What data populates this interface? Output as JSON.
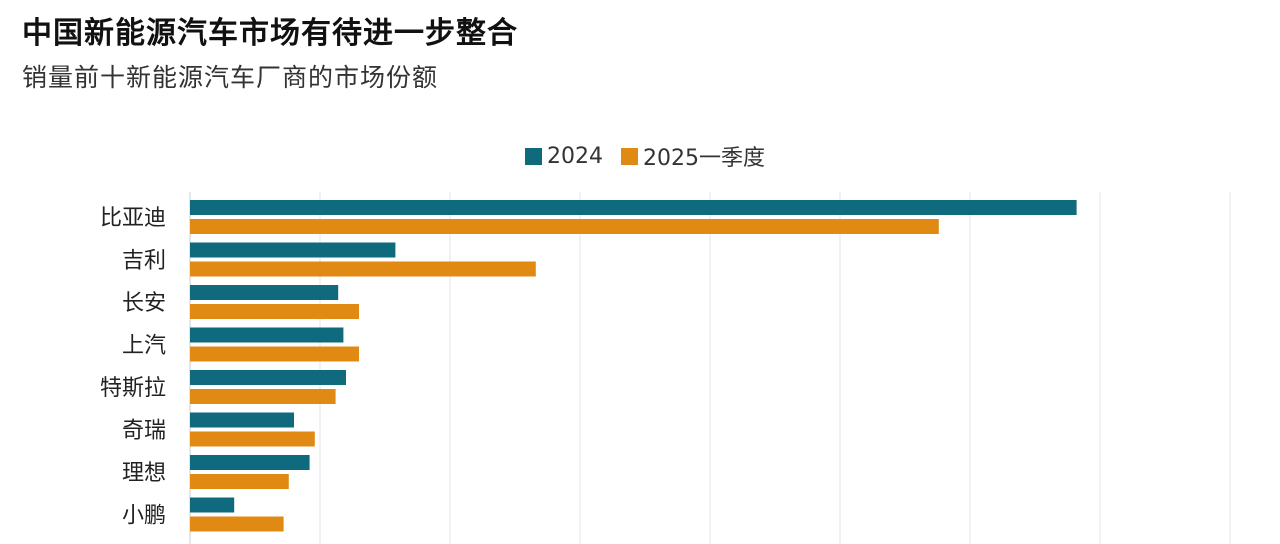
{
  "header": {
    "title": "中国新能源汽车市场有待进一步整合",
    "subtitle": "销量前十新能源汽车厂商的市场份额"
  },
  "legend": {
    "items": [
      {
        "label": "2024",
        "color": "#0f6a7d"
      },
      {
        "label": "2025一季度",
        "color": "#e08a14"
      }
    ]
  },
  "chart_data": {
    "type": "bar",
    "orientation": "horizontal",
    "categories": [
      "比亚迪",
      "吉利",
      "长安",
      "上汽",
      "特斯拉",
      "奇瑞",
      "理想",
      "小鹏"
    ],
    "series": [
      {
        "name": "2024",
        "color": "#0f6a7d",
        "values": [
          34.1,
          7.9,
          5.7,
          5.9,
          6.0,
          4.0,
          4.6,
          1.7
        ]
      },
      {
        "name": "2025一季度",
        "color": "#e08a14",
        "values": [
          28.8,
          13.3,
          6.5,
          6.5,
          5.6,
          4.8,
          3.8,
          3.6
        ]
      }
    ],
    "xlim": [
      0,
      40
    ],
    "grid": true,
    "legend_position": "top-center"
  }
}
